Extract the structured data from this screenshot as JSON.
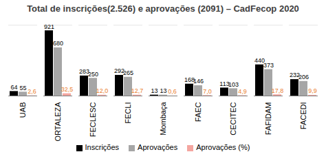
{
  "chart_data": {
    "type": "bar",
    "title": "Total de inscrições(2.526) e aprovações (2091) – CadFecop 2020",
    "categories": [
      "UAB",
      "FORTALEZA",
      "FECLESC",
      "FECLI",
      "Mombaça",
      "FAEC",
      "CECITEC",
      "FAFIDAM",
      "FACEDI"
    ],
    "series": [
      {
        "name": "Inscrições",
        "color": "#000000",
        "values": [
          64,
          921,
          283,
          292,
          13,
          168,
          113,
          440,
          232
        ]
      },
      {
        "name": "Aprovações",
        "color": "#a6a6a6",
        "values": [
          55,
          680,
          250,
          265,
          13,
          146,
          103,
          373,
          206
        ]
      },
      {
        "name": "Aprovações (%)",
        "color": "#f4a6a0",
        "values": [
          2.6,
          32.5,
          12.0,
          12.7,
          0.6,
          7.0,
          4.9,
          17.8,
          9.9
        ],
        "value_labels": [
          "2,6",
          "32,5",
          "12,0",
          "12,7",
          "0,6",
          "7,0",
          "4,9",
          "17,8",
          "9,9"
        ]
      }
    ],
    "ylim": [
      0,
      1000
    ],
    "data_labels": true,
    "tick_labels": "x",
    "legend": "bottom"
  }
}
